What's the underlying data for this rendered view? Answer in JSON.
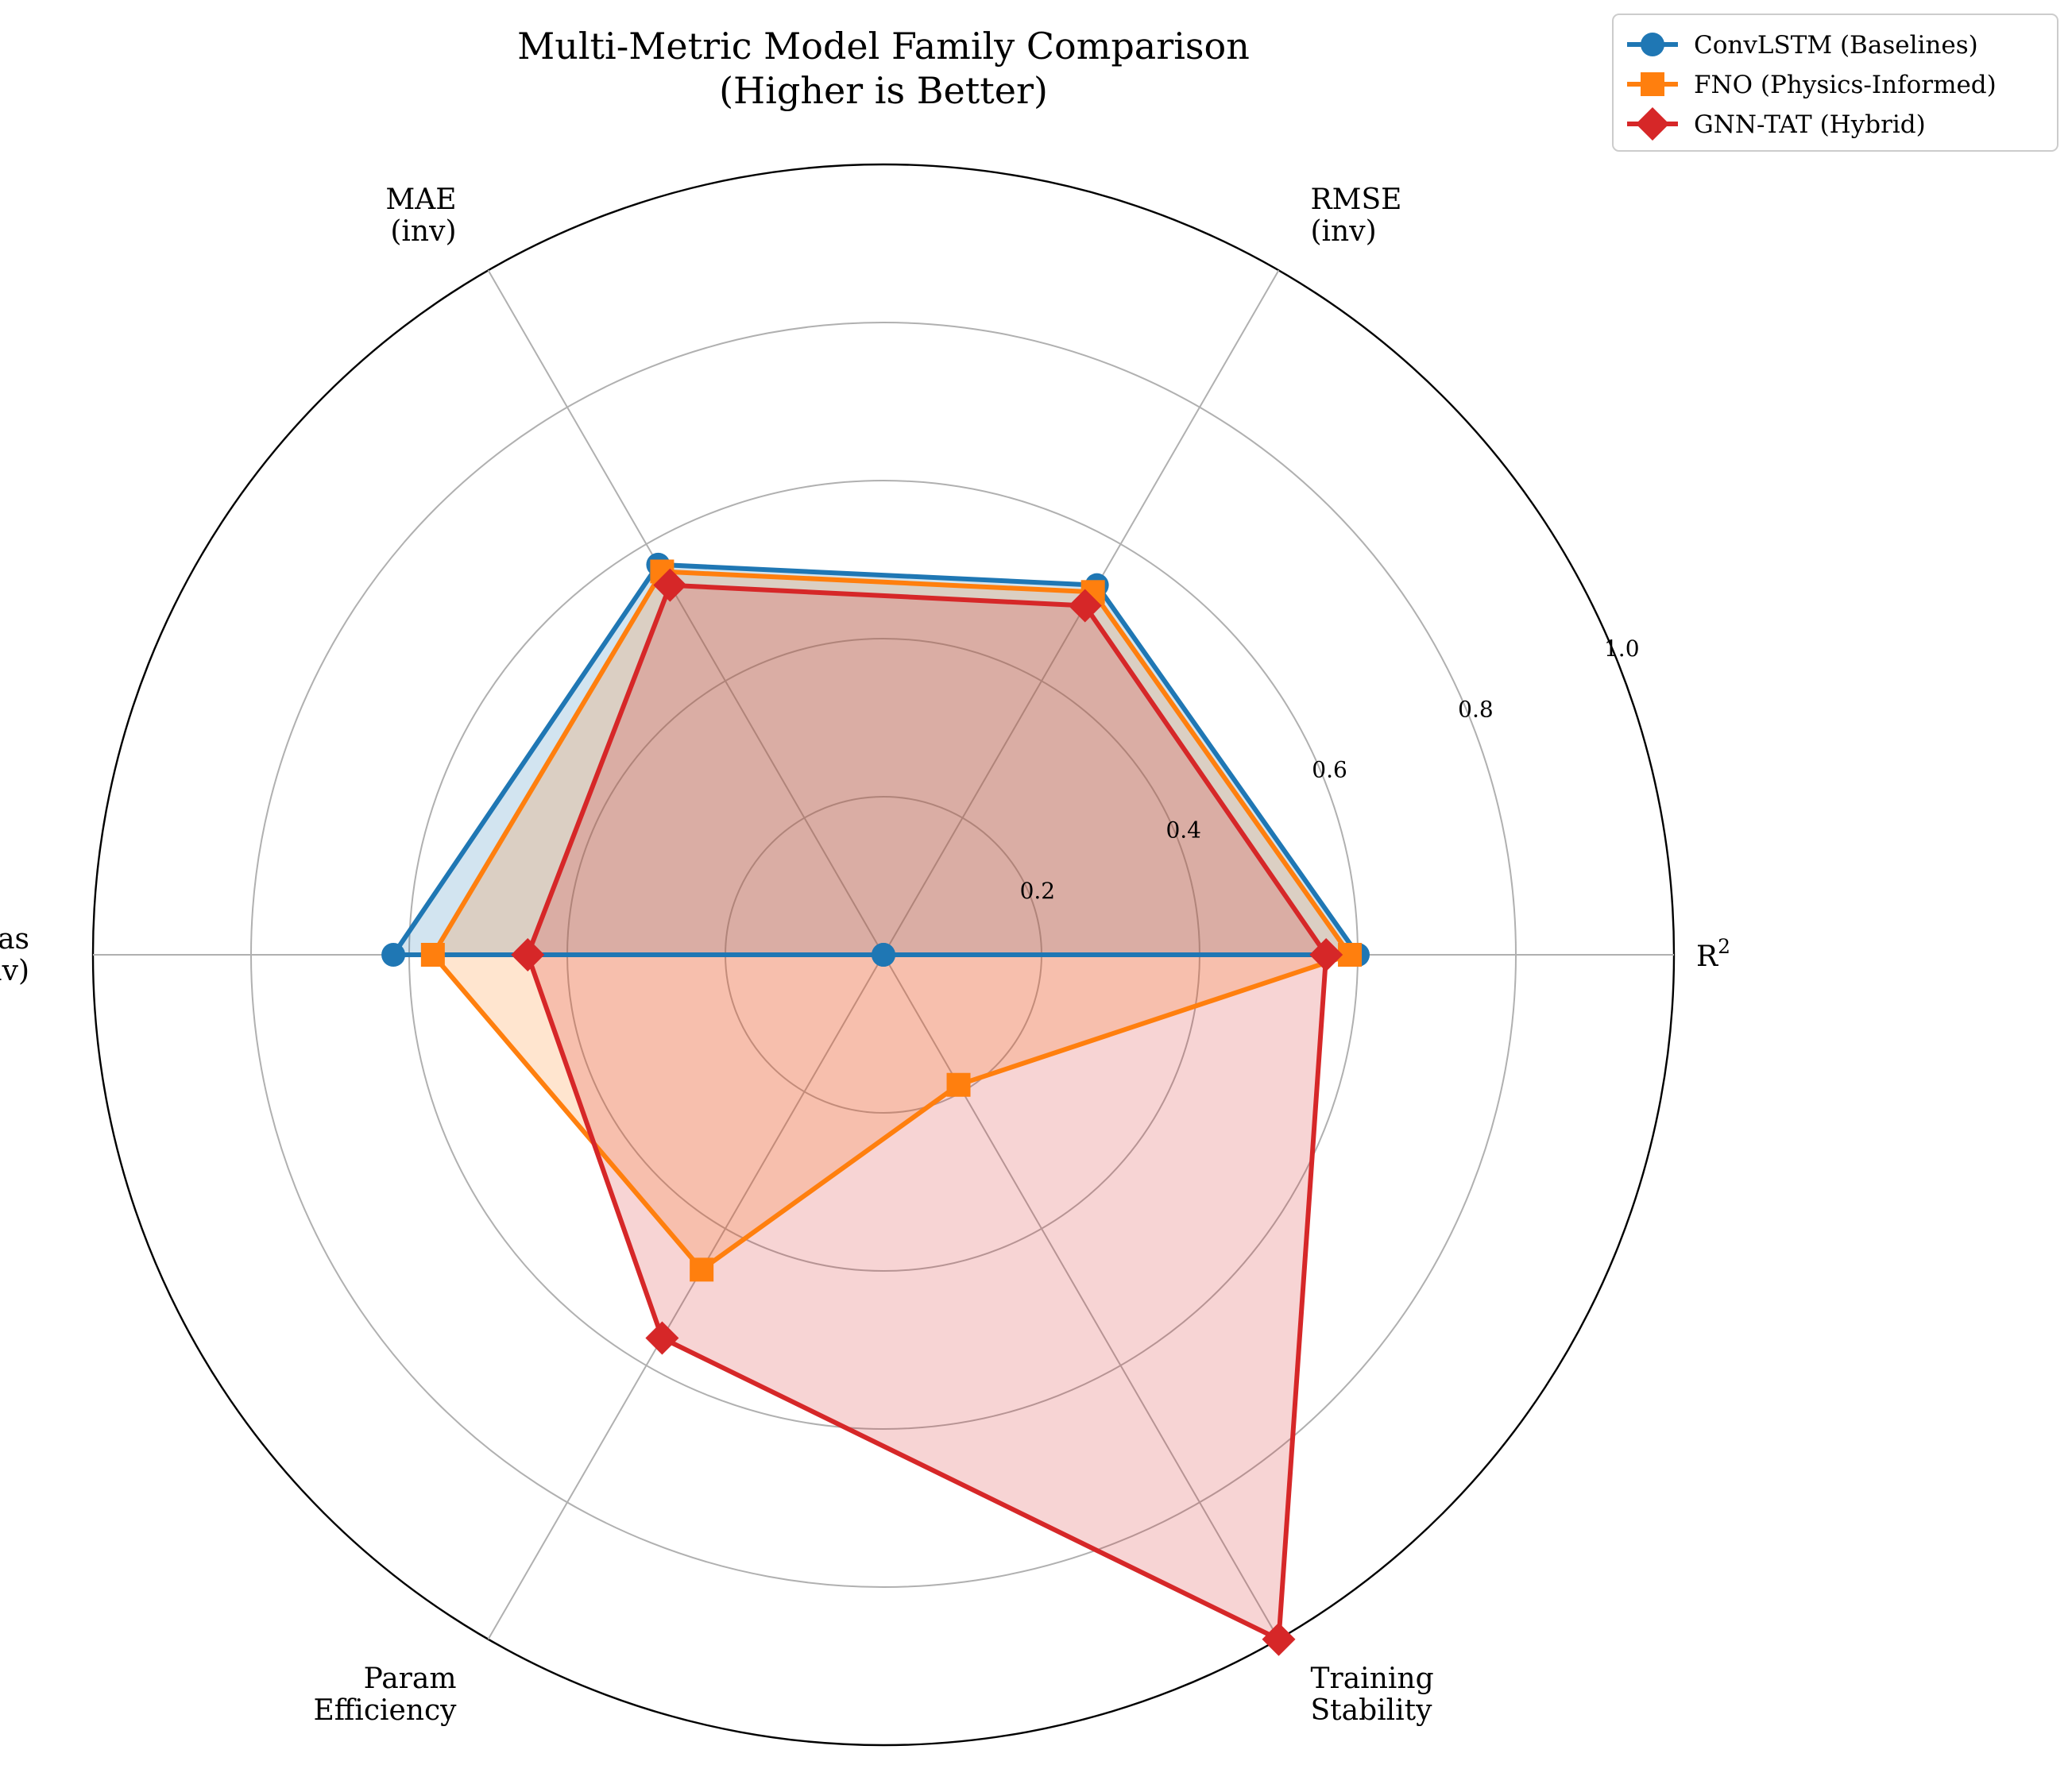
{
  "chart_data": {
    "type": "radar",
    "title_lines": [
      "Multi-Metric Model Family Comparison",
      "(Higher is Better)"
    ],
    "axes": [
      {
        "lines": [
          "R",
          "2"
        ],
        "superscript": true
      },
      {
        "lines": [
          "RMSE",
          "(inv)"
        ]
      },
      {
        "lines": [
          "MAE",
          "(inv)"
        ]
      },
      {
        "lines": [
          "Bias",
          "(inv)"
        ]
      },
      {
        "lines": [
          "Param",
          "Efficiency"
        ]
      },
      {
        "lines": [
          "Training",
          "Stability"
        ]
      }
    ],
    "rlim": [
      0,
      1.0
    ],
    "rticks": [
      "0.2",
      "0.4",
      "0.6",
      "0.8",
      "1.0"
    ],
    "rtick_values": [
      0.2,
      0.4,
      0.6,
      0.8,
      1.0
    ],
    "grid": true,
    "legend_position": "top-right",
    "series": [
      {
        "name": "ConvLSTM (Baselines)",
        "color": "#1f77b4",
        "marker": "circle",
        "values": [
          0.6,
          0.54,
          0.57,
          0.62,
          0.0,
          0.0
        ]
      },
      {
        "name": "FNO (Physics-Informed)",
        "color": "#ff7f0e",
        "marker": "square",
        "values": [
          0.59,
          0.53,
          0.56,
          0.57,
          0.46,
          0.19
        ]
      },
      {
        "name": "GNN-TAT (Hybrid)",
        "color": "#d62728",
        "marker": "diamond",
        "values": [
          0.56,
          0.51,
          0.54,
          0.45,
          0.56,
          1.0
        ]
      }
    ]
  }
}
